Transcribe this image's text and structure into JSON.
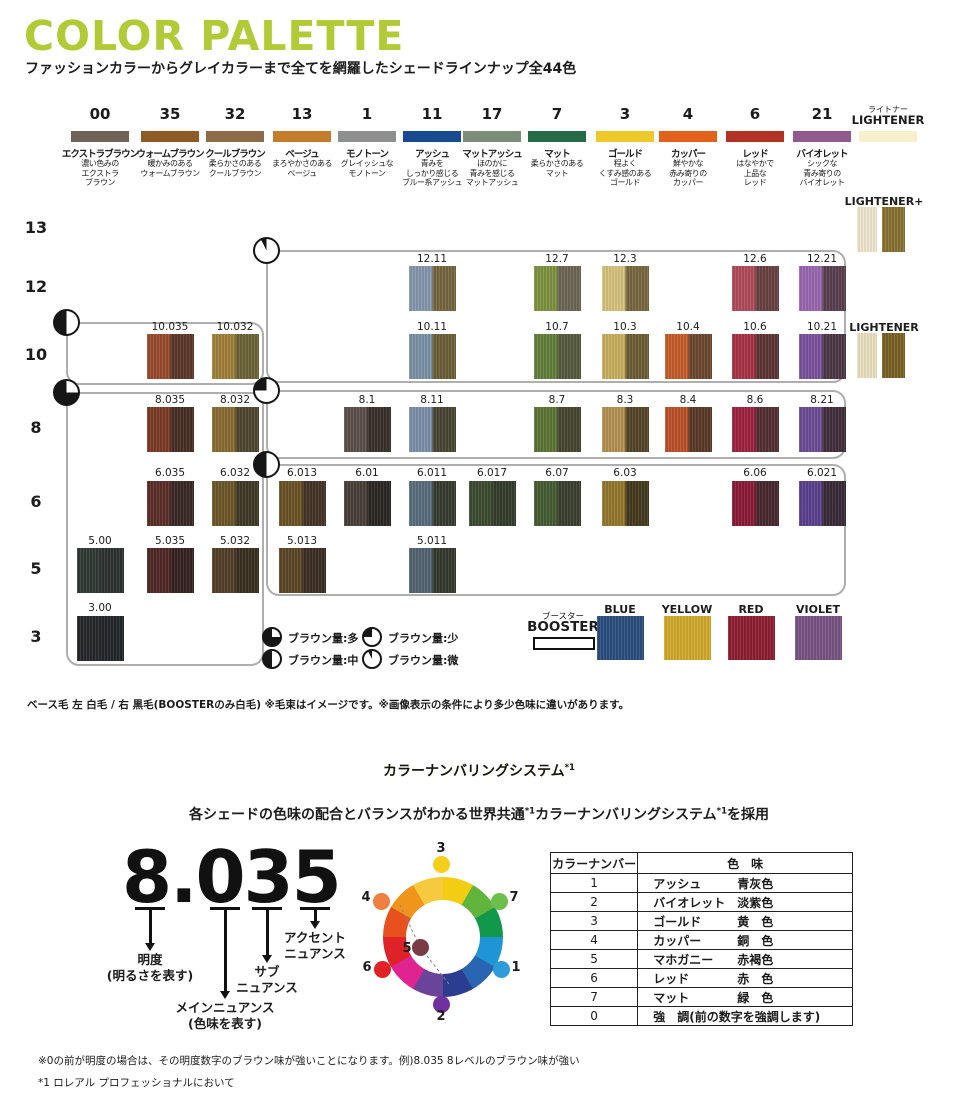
{
  "palette": {
    "title": "COLOR PALETTE",
    "subtitle": "ファッションカラーからグレイカラーまで全てを網羅したシェードラインナップ全44色",
    "columns": [
      {
        "num": "00",
        "name": "エクストラブラウン",
        "desc": "濃い色みの\nエクストラ\nブラウン",
        "color": "#6f6358"
      },
      {
        "num": "35",
        "name": "ウォームブラウン",
        "desc": "暖かみのある\nウォームブラウン",
        "color": "#8e5a26"
      },
      {
        "num": "32",
        "name": "クールブラウン",
        "desc": "柔らかさのある\nクールブラウン",
        "color": "#8d6b49"
      },
      {
        "num": "13",
        "name": "ベージュ",
        "desc": "まろやかさのある\nベージュ",
        "color": "#c47d2c"
      },
      {
        "num": "1",
        "name": "モノトーン",
        "desc": "グレイッシュな\nモノトーン",
        "color": "#8e9090"
      },
      {
        "num": "11",
        "name": "アッシュ",
        "desc": "青みを\nしっかり感じる\nブルー系アッシュ",
        "color": "#174a8f"
      },
      {
        "num": "17",
        "name": "マットアッシュ",
        "desc": "ほのかに\n青みを感じる\nマットアッシュ",
        "color": "#7b8c79"
      },
      {
        "num": "7",
        "name": "マット",
        "desc": "柔らかさのある\nマット",
        "color": "#266b48"
      },
      {
        "num": "3",
        "name": "ゴールド",
        "desc": "程よく\nくすみ感のある\nゴールド",
        "color": "#eec929"
      },
      {
        "num": "4",
        "name": "カッパー",
        "desc": "鮮やかな\n赤み寄りの\nカッパー",
        "color": "#e2611d"
      },
      {
        "num": "6",
        "name": "レッド",
        "desc": "はなやかで\n上品な\nレッド",
        "color": "#b03325"
      },
      {
        "num": "21",
        "name": "バイオレット",
        "desc": "シックな\n青み寄りの\nバイオレット",
        "color": "#91598e"
      }
    ],
    "lightener_col": {
      "jp": "ライトナー",
      "en": "LIGHTENER",
      "color": "#f7f0cc"
    },
    "levels": [
      "13",
      "12",
      "10",
      "8",
      "6",
      "5",
      "3"
    ],
    "groups": [
      {
        "brown": "mid"
      },
      {
        "brown": "many"
      },
      {
        "brown": "trace"
      },
      {
        "brown": "few"
      },
      {
        "brown": "mid"
      }
    ],
    "swatches": [
      {
        "label": "12.11",
        "row": "12",
        "col": "11",
        "l": "#8798ae",
        "r": "#77683f"
      },
      {
        "label": "12.7",
        "row": "12",
        "col": "7",
        "l": "#7e9340",
        "r": "#6e6757"
      },
      {
        "label": "12.3",
        "row": "12",
        "col": "3",
        "l": "#d8c47e",
        "r": "#7b6941"
      },
      {
        "label": "12.6",
        "row": "12",
        "col": "6",
        "l": "#b24d5b",
        "r": "#6a4243"
      },
      {
        "label": "12.21",
        "row": "12",
        "col": "21",
        "l": "#9a68b0",
        "r": "#5b4050"
      },
      {
        "label": "10.035",
        "row": "10",
        "col": "35",
        "l": "#9b4c2d",
        "r": "#5c382a"
      },
      {
        "label": "10.032",
        "row": "10",
        "col": "32",
        "l": "#a2813a",
        "r": "#6d6536"
      },
      {
        "label": "10.11",
        "row": "10",
        "col": "11",
        "l": "#7d93a8",
        "r": "#6c6038"
      },
      {
        "label": "10.7",
        "row": "10",
        "col": "7",
        "l": "#64803c",
        "r": "#575c3e"
      },
      {
        "label": "10.3",
        "row": "10",
        "col": "3",
        "l": "#cab160",
        "r": "#6e5f35"
      },
      {
        "label": "10.4",
        "row": "10",
        "col": "4",
        "l": "#c65e2c",
        "r": "#6e4930"
      },
      {
        "label": "10.6",
        "row": "10",
        "col": "6",
        "l": "#a93447",
        "r": "#5d3736"
      },
      {
        "label": "10.21",
        "row": "10",
        "col": "21",
        "l": "#7d54a0",
        "r": "#4d3948"
      },
      {
        "label": "8.035",
        "row": "8",
        "col": "35",
        "l": "#7d3c27",
        "r": "#4a2f25"
      },
      {
        "label": "8.032",
        "row": "8",
        "col": "32",
        "l": "#8b6d32",
        "r": "#504830"
      },
      {
        "label": "8.1",
        "row": "8",
        "col": "1",
        "l": "#5c524a",
        "r": "#39322b"
      },
      {
        "label": "8.11",
        "row": "8",
        "col": "11",
        "l": "#7d91ab",
        "r": "#4b4735"
      },
      {
        "label": "8.7",
        "row": "8",
        "col": "7",
        "l": "#5d7637",
        "r": "#484631"
      },
      {
        "label": "8.3",
        "row": "8",
        "col": "3",
        "l": "#b59252",
        "r": "#564729"
      },
      {
        "label": "8.4",
        "row": "8",
        "col": "4",
        "l": "#be512a",
        "r": "#5c3a27"
      },
      {
        "label": "8.6",
        "row": "8",
        "col": "6",
        "l": "#9f2341",
        "r": "#543034"
      },
      {
        "label": "8.21",
        "row": "8",
        "col": "21",
        "l": "#6e4e96",
        "r": "#432f3d"
      },
      {
        "label": "6.035",
        "row": "6",
        "col": "35",
        "l": "#5d2f28",
        "r": "#3a2926"
      },
      {
        "label": "6.032",
        "row": "6",
        "col": "32",
        "l": "#6e5828",
        "r": "#403b27"
      },
      {
        "label": "6.013",
        "row": "6",
        "col": "13",
        "l": "#6e5426",
        "r": "#453527"
      },
      {
        "label": "6.01",
        "row": "6",
        "col": "1",
        "l": "#4a4039",
        "r": "#2c2925"
      },
      {
        "label": "6.011",
        "row": "6",
        "col": "11",
        "l": "#5a6f7f",
        "r": "#393c30"
      },
      {
        "label": "6.017",
        "row": "6",
        "col": "17",
        "l": "#3c4c30",
        "r": "#353d2c"
      },
      {
        "label": "6.07",
        "row": "6",
        "col": "7",
        "l": "#465d34",
        "r": "#3d412f"
      },
      {
        "label": "6.03",
        "row": "6",
        "col": "3",
        "l": "#95792e",
        "r": "#443b1f"
      },
      {
        "label": "6.06",
        "row": "6",
        "col": "6",
        "l": "#8d1c38",
        "r": "#492830"
      },
      {
        "label": "6.021",
        "row": "6",
        "col": "21",
        "l": "#5d4290",
        "r": "#3a2a38"
      },
      {
        "label": "5.00",
        "row": "5",
        "col": "00",
        "l": "#323a36",
        "r": "#2e3432"
      },
      {
        "label": "5.035",
        "row": "5",
        "col": "35",
        "l": "#522825",
        "r": "#362322"
      },
      {
        "label": "5.032",
        "row": "5",
        "col": "32",
        "l": "#554028",
        "r": "#3a3021"
      },
      {
        "label": "5.013",
        "row": "5",
        "col": "13",
        "l": "#5d4826",
        "r": "#3d3024"
      },
      {
        "label": "5.011",
        "row": "5",
        "col": "11",
        "l": "#546573",
        "r": "#363a2e"
      },
      {
        "label": "3.00",
        "row": "3",
        "col": "00",
        "l": "#26292b",
        "r": "#23262a"
      }
    ],
    "lighteners": [
      {
        "label": "LIGHTENER+",
        "l": "#f0e9cf",
        "r": "#8a7334"
      },
      {
        "label": "LIGHTENER",
        "l": "#ece3c3",
        "r": "#7a6327"
      }
    ],
    "booster": {
      "jp": "ブースター",
      "en": "BOOSTER",
      "items": [
        {
          "label": "BLUE",
          "color": "#2c5080"
        },
        {
          "label": "YELLOW",
          "color": "#d3ab2c"
        },
        {
          "label": "RED",
          "color": "#8e2031"
        },
        {
          "label": "VIOLET",
          "color": "#7b5486"
        }
      ]
    },
    "legend": [
      {
        "pie": "many",
        "label": "ブラウン量:多"
      },
      {
        "pie": "few",
        "label": "ブラウン量:少"
      },
      {
        "pie": "mid",
        "label": "ブラウン量:中"
      },
      {
        "pie": "trace",
        "label": "ブラウン量:微"
      }
    ],
    "note": "ベース毛 左 白毛 / 右 黒毛(BOOSTERのみ白毛) ※毛束はイメージです。※画像表示の条件により多少色味に違いがあります。"
  },
  "numbering": {
    "banner": "カラーナンバリングシステム",
    "sup": "*1",
    "lead_parts": [
      "各シェードの色味の配合とバランスがわかる世界共通",
      "*1",
      "カラーナンバリングシステム",
      "*1",
      "を採用"
    ],
    "big_number": "8.035",
    "annotations": [
      {
        "label": "明度\n(明るさを表す)"
      },
      {
        "label": "メインニュアンス\n(色味を表す)"
      },
      {
        "label": "サブ\nニュアンス"
      },
      {
        "label": "アクセント\nニュアンス"
      }
    ],
    "wheel": {
      "segments": [
        "#f2cd12",
        "#62b53c",
        "#12984b",
        "#2095d5",
        "#2a65b2",
        "#2b3d90",
        "#6a4498",
        "#df2390",
        "#df2228",
        "#e7511d",
        "#f0941c",
        "#f6ca3e"
      ],
      "dots": [
        {
          "n": "3",
          "color": "#f6cf1b"
        },
        {
          "n": "7",
          "color": "#6cbf4a"
        },
        {
          "n": "1",
          "color": "#2e9bdb"
        },
        {
          "n": "2",
          "color": "#7030a0"
        },
        {
          "n": "6",
          "color": "#e02228"
        },
        {
          "n": "4",
          "color": "#ee8142"
        },
        {
          "n": "5",
          "color": "#7a3b44"
        }
      ]
    },
    "table": {
      "headers": [
        "カラーナンバー",
        "色　味"
      ],
      "rows": [
        {
          "num": "1",
          "name": "アッシュ",
          "desc": "青灰色"
        },
        {
          "num": "2",
          "name": "バイオレット",
          "desc": "淡紫色"
        },
        {
          "num": "3",
          "name": "ゴールド",
          "desc": "黄　色"
        },
        {
          "num": "4",
          "name": "カッパー",
          "desc": "銅　色"
        },
        {
          "num": "5",
          "name": "マホガニー",
          "desc": "赤褐色"
        },
        {
          "num": "6",
          "name": "レッド",
          "desc": "赤　色"
        },
        {
          "num": "7",
          "name": "マット",
          "desc": "緑　色"
        },
        {
          "num": "0",
          "name": "強　調(前の数字を強調します)",
          "desc": ""
        }
      ]
    },
    "notes": [
      "※0の前が明度の場合は、その明度数字のブラウン味が強いことになります。例)8.035 8レベルのブラウン味が強い",
      "*1 ロレアル プロフェッショナルにおいて"
    ]
  }
}
